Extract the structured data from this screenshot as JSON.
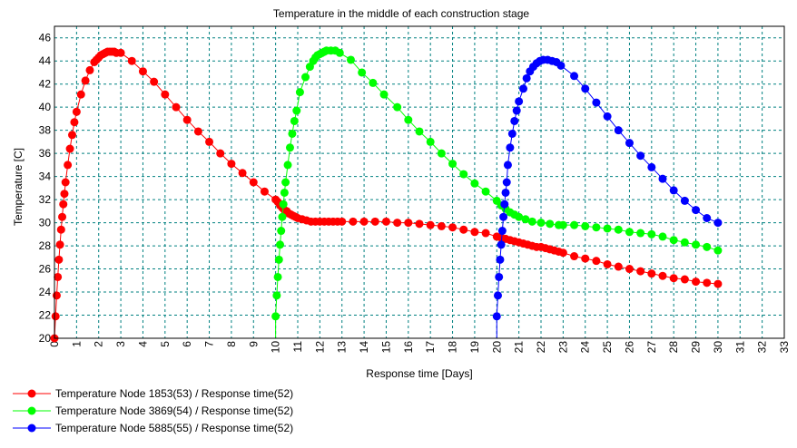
{
  "chart_data": {
    "type": "line",
    "title": "Temperature in the middle of each construction stage",
    "xlabel": "Response time [Days]",
    "ylabel": "Temperature [C]",
    "xlim": [
      0,
      33
    ],
    "ylim": [
      20,
      47
    ],
    "xticks": [
      0,
      1,
      2,
      3,
      4,
      5,
      6,
      7,
      8,
      9,
      10,
      11,
      12,
      13,
      14,
      15,
      16,
      17,
      18,
      19,
      20,
      21,
      22,
      23,
      24,
      25,
      26,
      27,
      28,
      29,
      30,
      31,
      32,
      33
    ],
    "yticks": [
      20,
      22,
      24,
      26,
      28,
      30,
      32,
      34,
      36,
      38,
      40,
      42,
      44,
      46
    ],
    "grid": true,
    "grid_color": "#008080",
    "legend_placement": "bottom-left",
    "series": [
      {
        "name": "Temperature Node 1853(53) / Response time(52)",
        "color": "#ff0000",
        "points": [
          [
            0,
            20
          ],
          [
            0.05,
            21.9
          ],
          [
            0.1,
            23.7
          ],
          [
            0.15,
            25.3
          ],
          [
            0.2,
            26.8
          ],
          [
            0.25,
            28.1
          ],
          [
            0.3,
            29.4
          ],
          [
            0.35,
            30.5
          ],
          [
            0.4,
            31.6
          ],
          [
            0.45,
            32.5
          ],
          [
            0.5,
            33.5
          ],
          [
            0.6,
            35.0
          ],
          [
            0.7,
            36.4
          ],
          [
            0.8,
            37.6
          ],
          [
            0.9,
            38.7
          ],
          [
            1.0,
            39.6
          ],
          [
            1.2,
            41.1
          ],
          [
            1.4,
            42.3
          ],
          [
            1.6,
            43.2
          ],
          [
            1.8,
            43.9
          ],
          [
            1.9,
            44.1
          ],
          [
            2.0,
            44.3
          ],
          [
            2.1,
            44.5
          ],
          [
            2.2,
            44.6
          ],
          [
            2.3,
            44.7
          ],
          [
            2.4,
            44.8
          ],
          [
            2.5,
            44.8
          ],
          [
            2.6,
            44.8
          ],
          [
            2.7,
            44.8
          ],
          [
            2.8,
            44.7
          ],
          [
            3.0,
            44.7
          ],
          [
            3.5,
            44.0
          ],
          [
            4,
            43.1
          ],
          [
            4.5,
            42.2
          ],
          [
            5,
            41.1
          ],
          [
            5.5,
            40.0
          ],
          [
            6,
            38.9
          ],
          [
            6.5,
            37.9
          ],
          [
            7,
            37.0
          ],
          [
            7.5,
            36.0
          ],
          [
            8,
            35.1
          ],
          [
            8.5,
            34.3
          ],
          [
            9,
            33.5
          ],
          [
            9.5,
            32.7
          ],
          [
            10,
            32.0
          ],
          [
            10.1,
            31.8
          ],
          [
            10.2,
            31.5
          ],
          [
            10.3,
            31.3
          ],
          [
            10.4,
            31.1
          ],
          [
            10.5,
            31.0
          ],
          [
            10.6,
            30.8
          ],
          [
            10.7,
            30.7
          ],
          [
            10.8,
            30.6
          ],
          [
            10.9,
            30.5
          ],
          [
            11,
            30.4
          ],
          [
            11.2,
            30.3
          ],
          [
            11.4,
            30.2
          ],
          [
            11.6,
            30.1
          ],
          [
            11.8,
            30.1
          ],
          [
            12,
            30.1
          ],
          [
            12.2,
            30.1
          ],
          [
            12.4,
            30.1
          ],
          [
            12.6,
            30.1
          ],
          [
            12.8,
            30.1
          ],
          [
            13,
            30.1
          ],
          [
            13.5,
            30.1
          ],
          [
            14,
            30.1
          ],
          [
            14.5,
            30.1
          ],
          [
            15,
            30.1
          ],
          [
            15.5,
            30.0
          ],
          [
            16,
            30.0
          ],
          [
            16.5,
            29.9
          ],
          [
            17,
            29.8
          ],
          [
            17.5,
            29.7
          ],
          [
            18,
            29.6
          ],
          [
            18.5,
            29.4
          ],
          [
            19,
            29.2
          ],
          [
            19.5,
            29.1
          ],
          [
            20,
            28.8
          ],
          [
            20.2,
            28.7
          ],
          [
            20.4,
            28.6
          ],
          [
            20.6,
            28.5
          ],
          [
            20.8,
            28.4
          ],
          [
            21,
            28.3
          ],
          [
            21.2,
            28.2
          ],
          [
            21.4,
            28.1
          ],
          [
            21.6,
            28.0
          ],
          [
            21.8,
            27.9
          ],
          [
            22,
            27.9
          ],
          [
            22.2,
            27.8
          ],
          [
            22.4,
            27.7
          ],
          [
            22.6,
            27.6
          ],
          [
            22.8,
            27.5
          ],
          [
            23,
            27.4
          ],
          [
            23.5,
            27.1
          ],
          [
            24,
            26.9
          ],
          [
            24.5,
            26.7
          ],
          [
            25,
            26.4
          ],
          [
            25.5,
            26.2
          ],
          [
            26,
            26.0
          ],
          [
            26.5,
            25.8
          ],
          [
            27,
            25.6
          ],
          [
            27.5,
            25.4
          ],
          [
            28,
            25.2
          ],
          [
            28.5,
            25.1
          ],
          [
            29,
            24.9
          ],
          [
            29.5,
            24.8
          ],
          [
            30,
            24.7
          ]
        ]
      },
      {
        "name": "Temperature Node 3869(54) / Response time(52)",
        "color": "#00ff00",
        "points": [
          [
            10,
            21.9
          ],
          [
            10.05,
            23.7
          ],
          [
            10.1,
            25.3
          ],
          [
            10.15,
            26.8
          ],
          [
            10.2,
            28.1
          ],
          [
            10.25,
            29.3
          ],
          [
            10.3,
            30.5
          ],
          [
            10.35,
            31.6
          ],
          [
            10.4,
            32.6
          ],
          [
            10.45,
            33.5
          ],
          [
            10.55,
            35.0
          ],
          [
            10.65,
            36.5
          ],
          [
            10.75,
            37.7
          ],
          [
            10.85,
            38.8
          ],
          [
            10.95,
            39.7
          ],
          [
            11.1,
            41.3
          ],
          [
            11.35,
            42.6
          ],
          [
            11.55,
            43.5
          ],
          [
            11.7,
            44.0
          ],
          [
            11.8,
            44.3
          ],
          [
            11.9,
            44.5
          ],
          [
            12.0,
            44.6
          ],
          [
            12.1,
            44.7
          ],
          [
            12.2,
            44.8
          ],
          [
            12.3,
            44.9
          ],
          [
            12.5,
            44.9
          ],
          [
            12.7,
            44.9
          ],
          [
            12.9,
            44.7
          ],
          [
            13.4,
            44.1
          ],
          [
            13.9,
            43.0
          ],
          [
            14.4,
            42.1
          ],
          [
            14.9,
            41.1
          ],
          [
            15.5,
            40.0
          ],
          [
            16,
            38.9
          ],
          [
            16.5,
            37.9
          ],
          [
            17,
            37.0
          ],
          [
            17.5,
            36.0
          ],
          [
            18,
            35.1
          ],
          [
            18.5,
            34.2
          ],
          [
            19,
            33.4
          ],
          [
            19.5,
            32.7
          ],
          [
            20,
            31.9
          ],
          [
            20.2,
            31.5
          ],
          [
            20.4,
            31.2
          ],
          [
            20.6,
            30.9
          ],
          [
            20.8,
            30.7
          ],
          [
            21,
            30.5
          ],
          [
            21.3,
            30.3
          ],
          [
            21.6,
            30.1
          ],
          [
            22,
            30.0
          ],
          [
            22.4,
            29.9
          ],
          [
            22.8,
            29.8
          ],
          [
            23,
            29.8
          ],
          [
            23.5,
            29.8
          ],
          [
            24,
            29.7
          ],
          [
            24.5,
            29.6
          ],
          [
            25,
            29.5
          ],
          [
            25.5,
            29.4
          ],
          [
            26,
            29.2
          ],
          [
            26.5,
            29.1
          ],
          [
            27,
            29.0
          ],
          [
            27.5,
            28.8
          ],
          [
            28,
            28.5
          ],
          [
            28.5,
            28.3
          ],
          [
            29,
            28.1
          ],
          [
            29.5,
            27.9
          ],
          [
            30,
            27.6
          ]
        ]
      },
      {
        "name": "Temperature Node 5885(55) / Response time(52)",
        "color": "#0000ff",
        "points": [
          [
            20,
            21.9
          ],
          [
            20.05,
            23.7
          ],
          [
            20.1,
            25.3
          ],
          [
            20.15,
            26.8
          ],
          [
            20.2,
            28.1
          ],
          [
            20.25,
            29.3
          ],
          [
            20.3,
            30.5
          ],
          [
            20.35,
            31.6
          ],
          [
            20.4,
            32.6
          ],
          [
            20.45,
            33.5
          ],
          [
            20.5,
            35.0
          ],
          [
            20.6,
            36.5
          ],
          [
            20.7,
            37.7
          ],
          [
            20.8,
            38.8
          ],
          [
            20.9,
            39.7
          ],
          [
            21.0,
            40.5
          ],
          [
            21.2,
            41.6
          ],
          [
            21.35,
            42.5
          ],
          [
            21.5,
            43.1
          ],
          [
            21.65,
            43.5
          ],
          [
            21.8,
            43.8
          ],
          [
            21.95,
            44.0
          ],
          [
            22.1,
            44.1
          ],
          [
            22.3,
            44.1
          ],
          [
            22.5,
            44.0
          ],
          [
            22.7,
            43.9
          ],
          [
            22.9,
            43.6
          ],
          [
            23.5,
            42.7
          ],
          [
            24,
            41.6
          ],
          [
            24.5,
            40.4
          ],
          [
            25,
            39.2
          ],
          [
            25.5,
            38.0
          ],
          [
            26,
            36.9
          ],
          [
            26.5,
            35.8
          ],
          [
            27,
            34.8
          ],
          [
            27.5,
            33.8
          ],
          [
            28,
            32.8
          ],
          [
            28.5,
            31.9
          ],
          [
            29,
            31.1
          ],
          [
            29.5,
            30.4
          ],
          [
            30,
            30.0
          ]
        ]
      }
    ]
  }
}
